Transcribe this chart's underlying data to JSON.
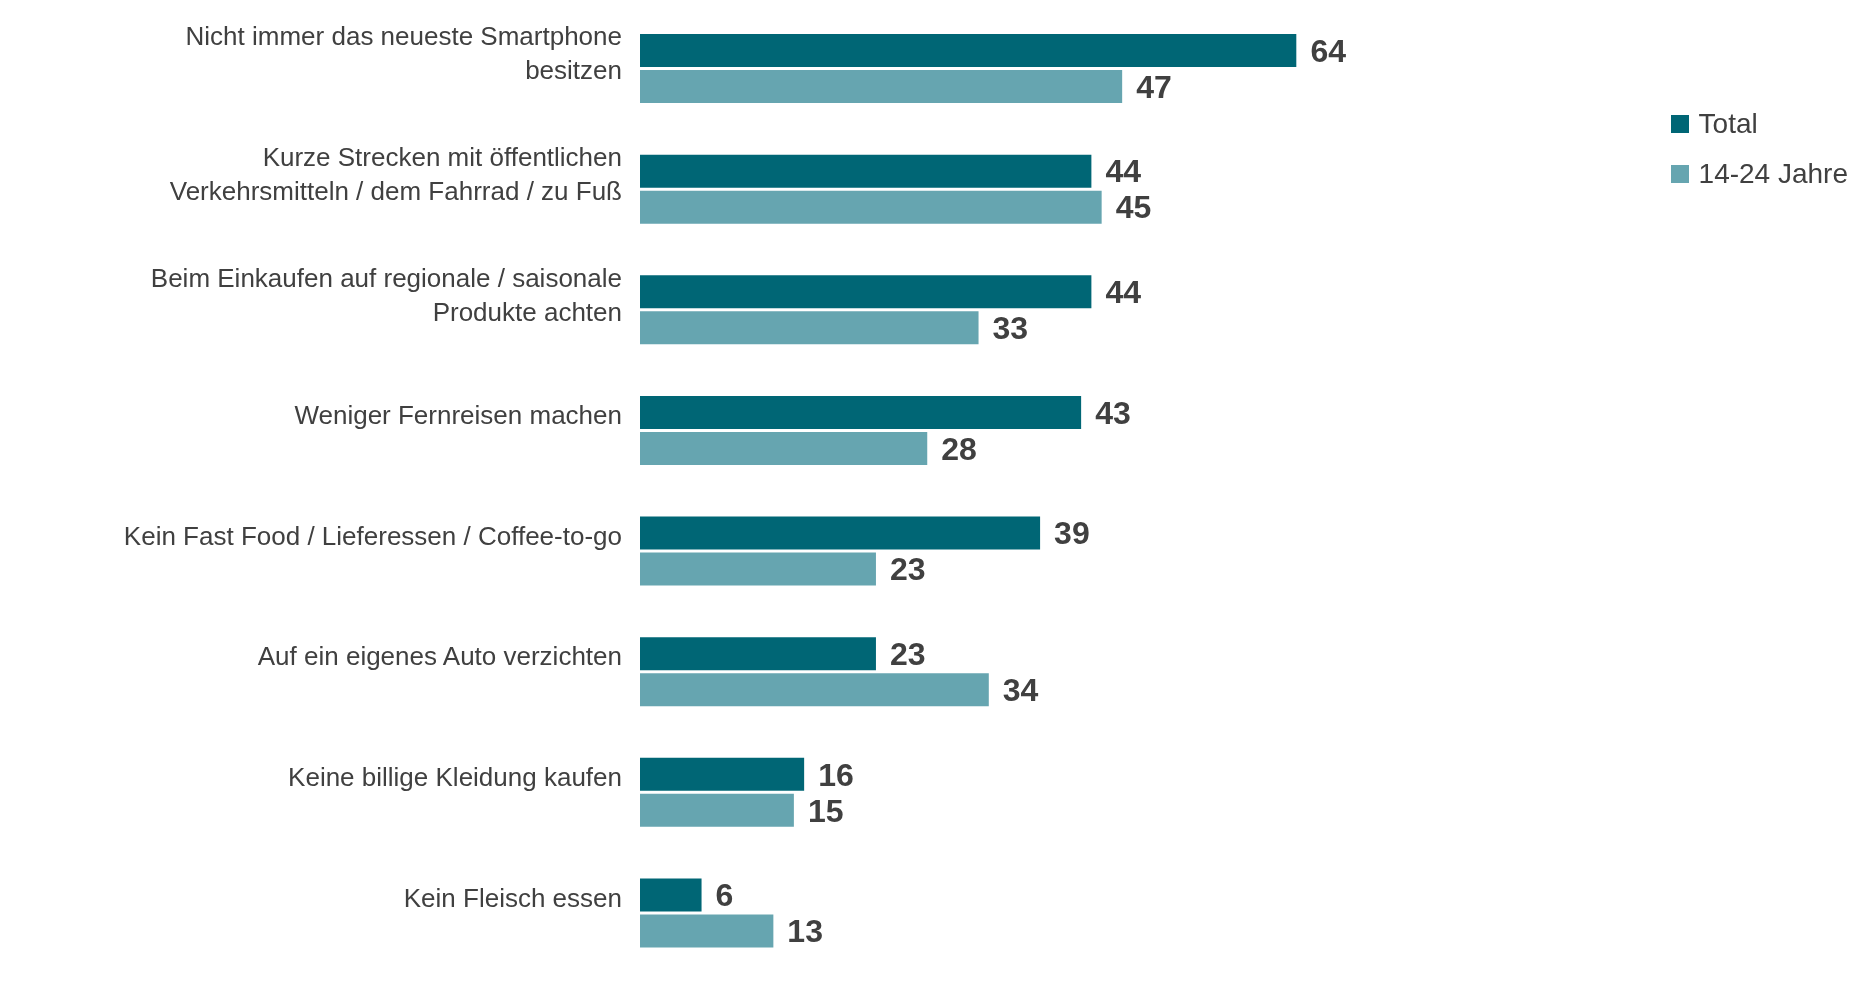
{
  "chart_data": {
    "type": "bar",
    "orientation": "horizontal",
    "categories": [
      "Nicht immer das neueste Smartphone besitzen",
      "Kurze Strecken mit öffentlichen Verkehrsmitteln / dem Fahrrad / zu Fuß",
      "Beim Einkaufen auf regionale / saisonale Produkte achten",
      "Weniger Fernreisen machen",
      "Kein Fast Food / Lieferessen / Coffee-to-go",
      "Auf ein eigenes Auto verzichten",
      "Keine billige Kleidung kaufen",
      "Kein Fleisch essen"
    ],
    "series": [
      {
        "name": "Total",
        "color": "#006675",
        "values": [
          64,
          44,
          44,
          43,
          39,
          23,
          16,
          6
        ]
      },
      {
        "name": "14-24 Jahre",
        "color": "#66a5b0",
        "values": [
          47,
          45,
          33,
          28,
          23,
          34,
          15,
          13
        ]
      }
    ],
    "data_labels": true,
    "legend": "top right"
  }
}
